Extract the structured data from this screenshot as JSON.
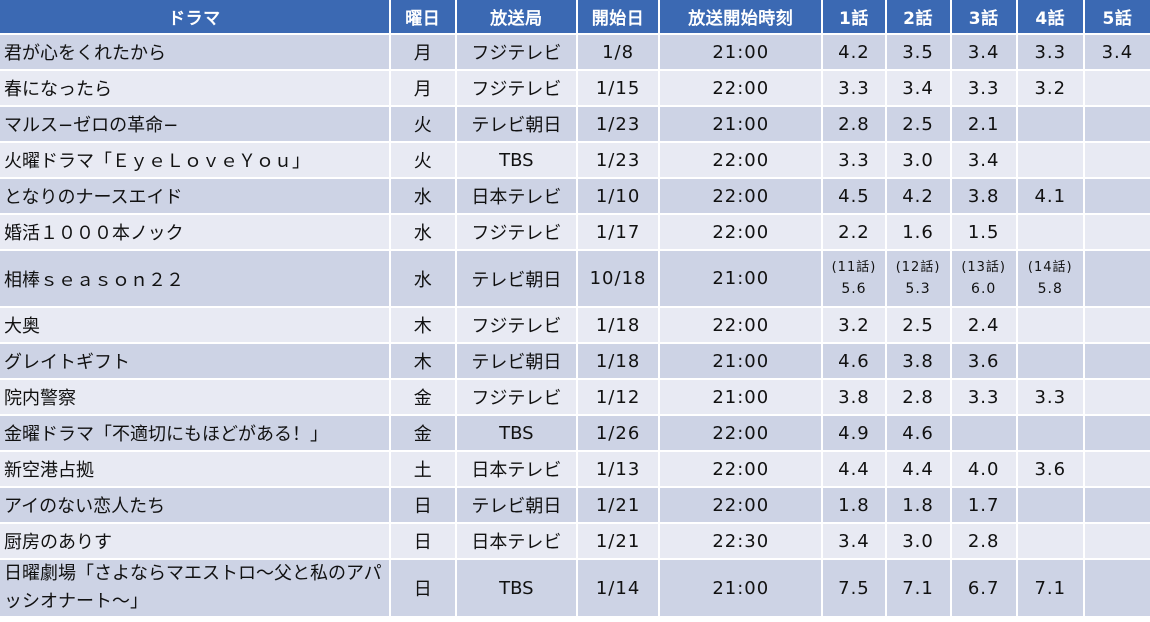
{
  "table": {
    "headers": [
      "ドラマ",
      "曜日",
      "放送局",
      "開始日",
      "放送開始時刻",
      "1話",
      "2話",
      "3話",
      "4話",
      "5話"
    ],
    "colors": {
      "header_bg": "#3b69b3",
      "header_text": "#ffffff",
      "row_odd": "#cdd3e5",
      "row_even": "#e8eaf3"
    },
    "rows": [
      {
        "title": "君が心をくれたから",
        "day": "月",
        "station": "フジテレビ",
        "start": "1/8",
        "time": "21:00",
        "ep": [
          "4.2",
          "3.5",
          "3.4",
          "3.3",
          "3.4"
        ]
      },
      {
        "title": "春になったら",
        "day": "月",
        "station": "フジテレビ",
        "start": "1/15",
        "time": "22:00",
        "ep": [
          "3.3",
          "3.4",
          "3.3",
          "3.2",
          ""
        ]
      },
      {
        "title": "マルス−ゼロの革命−",
        "day": "火",
        "station": "テレビ朝日",
        "start": "1/23",
        "time": "21:00",
        "ep": [
          "2.8",
          "2.5",
          "2.1",
          "",
          ""
        ]
      },
      {
        "title": "火曜ドラマ「ＥｙｅＬｏｖｅＹｏｕ」",
        "day": "火",
        "station": "TBS",
        "start": "1/23",
        "time": "22:00",
        "ep": [
          "3.3",
          "3.0",
          "3.4",
          "",
          ""
        ]
      },
      {
        "title": "となりのナースエイド",
        "day": "水",
        "station": "日本テレビ",
        "start": "1/10",
        "time": "22:00",
        "ep": [
          "4.5",
          "4.2",
          "3.8",
          "4.1",
          ""
        ]
      },
      {
        "title": "婚活１０００本ノック",
        "day": "水",
        "station": "フジテレビ",
        "start": "1/17",
        "time": "22:00",
        "ep": [
          "2.2",
          "1.6",
          "1.5",
          "",
          ""
        ]
      },
      {
        "title": "相棒ｓｅａｓｏｎ２２",
        "day": "水",
        "station": "テレビ朝日",
        "start": "10/18",
        "time": "21:00",
        "ep_notes": [
          "(11話)",
          "(12話)",
          "(13話)",
          "(14話)",
          ""
        ],
        "ep": [
          "5.6",
          "5.3",
          "6.0",
          "5.8",
          ""
        ]
      },
      {
        "title": "大奥",
        "day": "木",
        "station": "フジテレビ",
        "start": "1/18",
        "time": "22:00",
        "ep": [
          "3.2",
          "2.5",
          "2.4",
          "",
          ""
        ]
      },
      {
        "title": "グレイトギフト",
        "day": "木",
        "station": "テレビ朝日",
        "start": "1/18",
        "time": "21:00",
        "ep": [
          "4.6",
          "3.8",
          "3.6",
          "",
          ""
        ]
      },
      {
        "title": "院内警察",
        "day": "金",
        "station": "フジテレビ",
        "start": "1/12",
        "time": "21:00",
        "ep": [
          "3.8",
          "2.8",
          "3.3",
          "3.3",
          ""
        ]
      },
      {
        "title": "金曜ドラマ「不適切にもほどがある！」",
        "day": "金",
        "station": "TBS",
        "start": "1/26",
        "time": "22:00",
        "ep": [
          "4.9",
          "4.6",
          "",
          "",
          ""
        ]
      },
      {
        "title": "新空港占拠",
        "day": "土",
        "station": "日本テレビ",
        "start": "1/13",
        "time": "22:00",
        "ep": [
          "4.4",
          "4.4",
          "4.0",
          "3.6",
          ""
        ]
      },
      {
        "title": "アイのない恋人たち",
        "day": "日",
        "station": "テレビ朝日",
        "start": "1/21",
        "time": "22:00",
        "ep": [
          "1.8",
          "1.8",
          "1.7",
          "",
          ""
        ]
      },
      {
        "title": "厨房のありす",
        "day": "日",
        "station": "日本テレビ",
        "start": "1/21",
        "time": "22:30",
        "ep": [
          "3.4",
          "3.0",
          "2.8",
          "",
          ""
        ]
      },
      {
        "title": "日曜劇場「さよならマエストロ～父と私のアパッシオナート～」",
        "day": "日",
        "station": "TBS",
        "start": "1/14",
        "time": "21:00",
        "ep": [
          "7.5",
          "7.1",
          "6.7",
          "7.1",
          ""
        ]
      }
    ]
  }
}
